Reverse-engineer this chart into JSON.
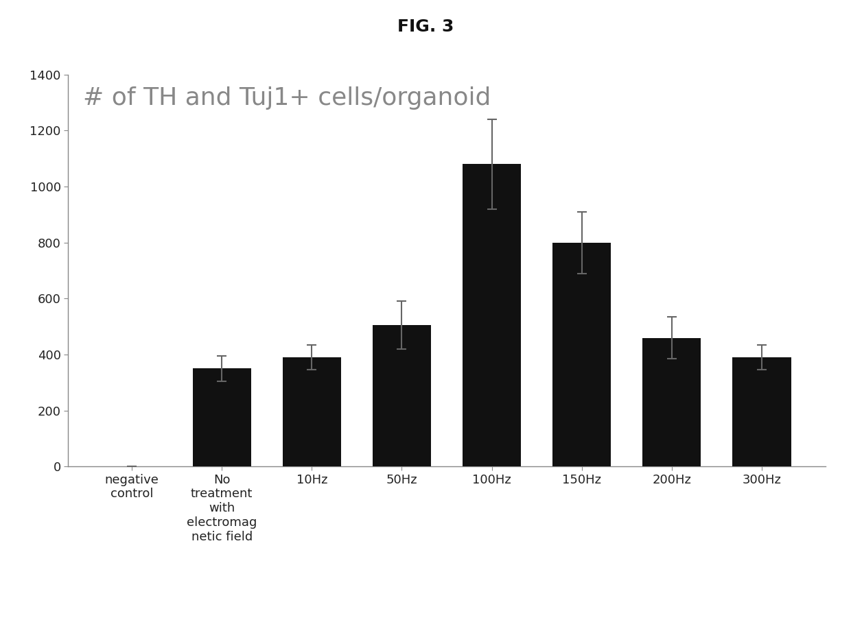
{
  "title": "# of TH and Tuj1+ cells/organoid",
  "fig_label": "FIG. 3",
  "categories": [
    "negative\ncontrol",
    "No\ntreatment\nwith\nelectromag\nnetic field",
    "10Hz",
    "50Hz",
    "100Hz",
    "150Hz",
    "200Hz",
    "300Hz"
  ],
  "values": [
    0,
    350,
    390,
    505,
    1080,
    800,
    460,
    390
  ],
  "errors": [
    0,
    45,
    45,
    85,
    160,
    110,
    75,
    45
  ],
  "bar_color": "#111111",
  "plot_bg_color": "#ffffff",
  "fig_bg_color": "#ffffff",
  "ylim": [
    0,
    1400
  ],
  "yticks": [
    0,
    200,
    400,
    600,
    800,
    1000,
    1200,
    1400
  ],
  "title_fontsize": 26,
  "tick_fontsize": 13,
  "figlabel_fontsize": 18,
  "title_color": "#888888",
  "figlabel_color": "#111111"
}
